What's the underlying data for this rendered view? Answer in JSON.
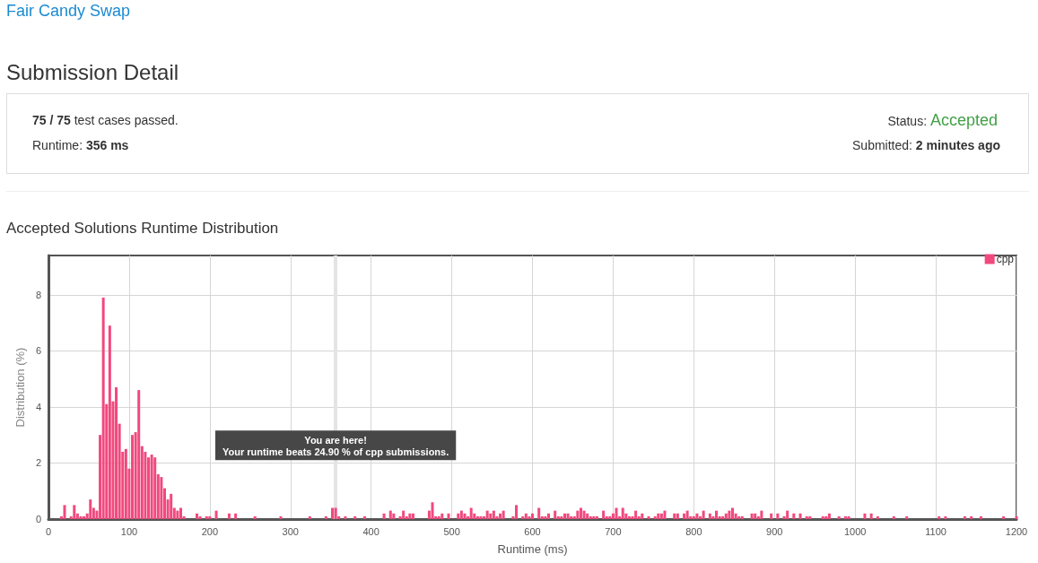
{
  "chart_data": {
    "type": "bar",
    "title": "Accepted Solutions Runtime Distribution",
    "annotations": [
      "Fair Candy Swap",
      "Submission Detail",
      "75 / 75",
      "test cases passed.",
      "Runtime:",
      "356 ms",
      "Status:",
      "Accepted",
      "Submitted:",
      "2 minutes ago"
    ],
    "xlabel": "Runtime (ms)",
    "ylabel": "Distribution (%)",
    "x": [
      16,
      20,
      28,
      32,
      36,
      40,
      44,
      48,
      52,
      56,
      60,
      64,
      68,
      72,
      76,
      80,
      84,
      88,
      92,
      96,
      100,
      104,
      108,
      112,
      116,
      120,
      124,
      128,
      132,
      136,
      140,
      144,
      148,
      152,
      156,
      160,
      164,
      168,
      184,
      188,
      196,
      200,
      208,
      224,
      232,
      256,
      288,
      324,
      344,
      352,
      356,
      360,
      368,
      380,
      392,
      416,
      424,
      428,
      436,
      440,
      444,
      448,
      452,
      472,
      476,
      480,
      484,
      488,
      496,
      508,
      512,
      516,
      520,
      524,
      528,
      532,
      536,
      540,
      544,
      548,
      552,
      556,
      560,
      564,
      576,
      580,
      588,
      592,
      596,
      600,
      608,
      612,
      616,
      620,
      628,
      632,
      636,
      640,
      644,
      648,
      652,
      656,
      660,
      664,
      668,
      672,
      676,
      680,
      688,
      692,
      696,
      700,
      704,
      708,
      712,
      716,
      720,
      724,
      728,
      732,
      736,
      744,
      752,
      756,
      760,
      764,
      776,
      780,
      788,
      792,
      796,
      800,
      804,
      808,
      812,
      820,
      824,
      828,
      832,
      836,
      840,
      844,
      848,
      852,
      856,
      860,
      872,
      876,
      880,
      884,
      896,
      904,
      912,
      916,
      924,
      932,
      940,
      944,
      960,
      964,
      968,
      980,
      988,
      992,
      1012,
      1020,
      1028,
      1048,
      1064,
      1104,
      1112,
      1136,
      1144,
      1156,
      1184,
      1200
    ],
    "series": [
      {
        "name": "cpp",
        "color": "#f1497e",
        "values": [
          0.1,
          0.5,
          0.1,
          0.5,
          0.2,
          0.1,
          0.1,
          0.2,
          0.7,
          0.4,
          0.3,
          3.0,
          7.9,
          4.1,
          6.9,
          4.2,
          4.7,
          3.4,
          2.4,
          2.5,
          1.8,
          3.0,
          3.1,
          4.6,
          2.6,
          2.4,
          2.2,
          2.3,
          2.2,
          1.6,
          1.5,
          1.1,
          0.7,
          0.9,
          0.4,
          0.3,
          0.4,
          0.1,
          0.2,
          0.1,
          0.1,
          0.1,
          0.3,
          0.2,
          0.2,
          0.1,
          0.1,
          0.1,
          0.1,
          0.4,
          0.4,
          0.1,
          0.1,
          0.1,
          0.1,
          0.2,
          0.3,
          0.2,
          0.1,
          0.3,
          0.1,
          0.2,
          0.2,
          0.3,
          0.6,
          0.1,
          0.1,
          0.2,
          0.2,
          0.2,
          0.3,
          0.2,
          0.1,
          0.4,
          0.2,
          0.1,
          0.1,
          0.1,
          0.3,
          0.2,
          0.3,
          0.1,
          0.2,
          0.3,
          0.1,
          0.5,
          0.1,
          0.2,
          0.1,
          0.2,
          0.4,
          0.1,
          0.1,
          0.2,
          0.3,
          0.1,
          0.1,
          0.2,
          0.2,
          0.1,
          0.1,
          0.3,
          0.4,
          0.3,
          0.2,
          0.1,
          0.1,
          0.1,
          0.3,
          0.1,
          0.1,
          0.2,
          0.4,
          0.1,
          0.4,
          0.2,
          0.1,
          0.1,
          0.3,
          0.1,
          0.2,
          0.1,
          0.1,
          0.2,
          0.2,
          0.3,
          0.2,
          0.2,
          0.2,
          0.3,
          0.1,
          0.1,
          0.2,
          0.1,
          0.3,
          0.2,
          0.1,
          0.3,
          0.1,
          0.1,
          0.2,
          0.3,
          0.4,
          0.2,
          0.1,
          0.1,
          0.2,
          0.2,
          0.1,
          0.3,
          0.2,
          0.2,
          0.1,
          0.3,
          0.2,
          0.2,
          0.1,
          0.1,
          0.1,
          0.1,
          0.2,
          0.1,
          0.1,
          0.1,
          0.2,
          0.2,
          0.1,
          0.1,
          0.1,
          0.1,
          0.1,
          0.1,
          0.1,
          0.1,
          0.1,
          0.1
        ]
      }
    ],
    "xlim": [
      0,
      1200
    ],
    "xticks": [
      0,
      100,
      200,
      300,
      400,
      500,
      600,
      700,
      800,
      900,
      1000,
      1100,
      1200
    ],
    "ylim": [
      0,
      9.4
    ],
    "yticks": [
      0,
      2,
      4,
      6,
      8
    ],
    "ref_lines": [
      {
        "axis": "x",
        "value": 356,
        "label": "You are here!\nYour runtime beats 24.90 % of cpp submissions.",
        "color": "#e4e4e4"
      }
    ],
    "grid": true,
    "legend": "top right"
  }
}
